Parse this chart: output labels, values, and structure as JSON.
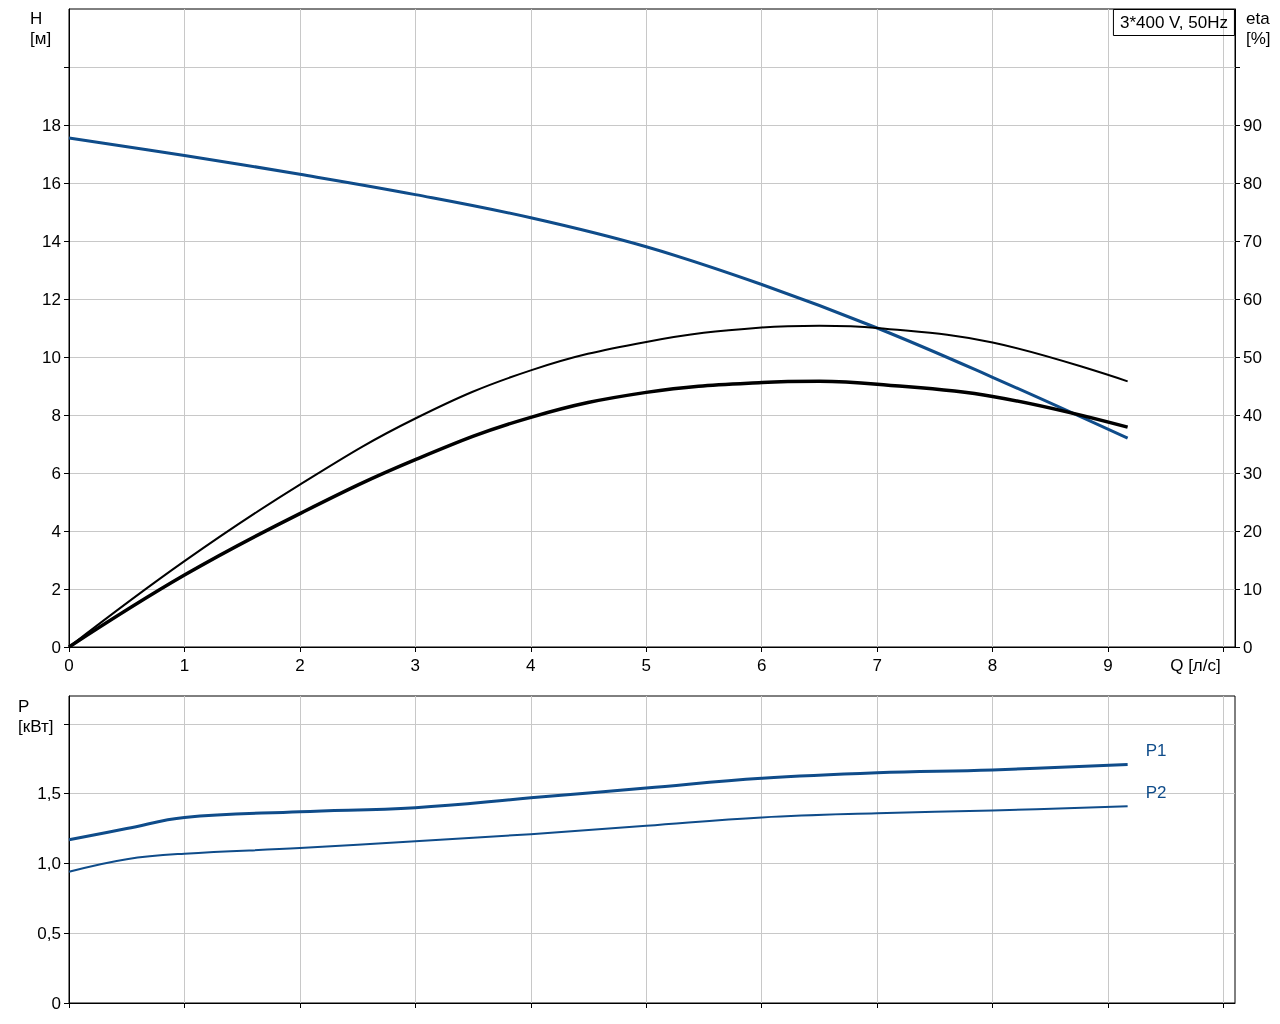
{
  "chart_data": [
    {
      "type": "line",
      "title": "3*400 V, 50Hz",
      "xlabel": "Q [л/с]",
      "ylabel": "H\n[м]",
      "y2label": "eta\n[%]",
      "xlim": [
        0,
        10.1
      ],
      "xticks": [
        0,
        1,
        2,
        3,
        4,
        5,
        6,
        7,
        8,
        9,
        {
          "value": 10,
          "label": null
        }
      ],
      "ylim": [
        0,
        22
      ],
      "yticks": [
        0,
        2,
        4,
        6,
        8,
        10,
        12,
        14,
        16,
        18,
        {
          "value": 20,
          "label": null
        }
      ],
      "y2lim": [
        0,
        110
      ],
      "y2ticks": [
        0,
        10,
        20,
        30,
        40,
        50,
        60,
        70,
        80,
        90,
        {
          "value": 100,
          "label": null
        }
      ],
      "grid": true,
      "marker": "none",
      "series": [
        {
          "color": "#0f4c8a",
          "x": [
            0,
            1,
            2,
            3,
            4,
            5,
            6,
            7,
            8,
            9.17
          ],
          "values": [
            17.55,
            16.95,
            16.3,
            15.6,
            14.8,
            13.8,
            12.5,
            11.0,
            9.3,
            7.2
          ]
        },
        {
          "color": "#000000",
          "axis": "y2",
          "x": [
            0,
            1,
            2,
            3,
            4,
            5,
            6,
            6.5,
            7,
            8,
            9.17
          ],
          "values": [
            0,
            14.8,
            28,
            39.4,
            47.7,
            52.6,
            55.1,
            55.4,
            55,
            52.5,
            45.8
          ]
        },
        {
          "color": "#000000",
          "axis": "y2",
          "x": [
            0,
            1,
            2,
            3,
            4,
            5,
            6,
            6.5,
            7,
            8,
            9.17
          ],
          "values": [
            0,
            12.4,
            23,
            32.3,
            39.6,
            43.9,
            45.6,
            45.8,
            45.3,
            43.2,
            37.9
          ]
        }
      ]
    },
    {
      "type": "line",
      "ylabel": "P\n[кВт]",
      "xlim": [
        0,
        10.1
      ],
      "xticks": [
        0,
        1,
        2,
        3,
        4,
        5,
        6,
        7,
        8,
        9,
        10
      ],
      "ylim": [
        0,
        2.2
      ],
      "yticks": [
        0,
        {
          "value": 0.5,
          "label": "0,5"
        },
        {
          "value": 1,
          "label": "1,0"
        },
        {
          "value": 1.5,
          "label": "1,5"
        },
        {
          "value": 2,
          "label": null
        }
      ],
      "grid": true,
      "marker": "none",
      "tick_labels": "y",
      "series": [
        {
          "name": "P1",
          "color": "#0f4c8a",
          "x": [
            0,
            0.5,
            1,
            2,
            3,
            4,
            5,
            6,
            7,
            8,
            9.17
          ],
          "values": [
            1.17,
            1.25,
            1.33,
            1.37,
            1.4,
            1.47,
            1.54,
            1.61,
            1.65,
            1.67,
            1.71
          ]
        },
        {
          "name": "P2",
          "color": "#0f4c8a",
          "x": [
            0,
            0.5,
            1,
            2,
            3,
            4,
            5,
            6,
            7,
            8,
            9.17
          ],
          "values": [
            0.94,
            1.03,
            1.07,
            1.11,
            1.16,
            1.21,
            1.27,
            1.33,
            1.36,
            1.38,
            1.41
          ]
        }
      ]
    }
  ]
}
